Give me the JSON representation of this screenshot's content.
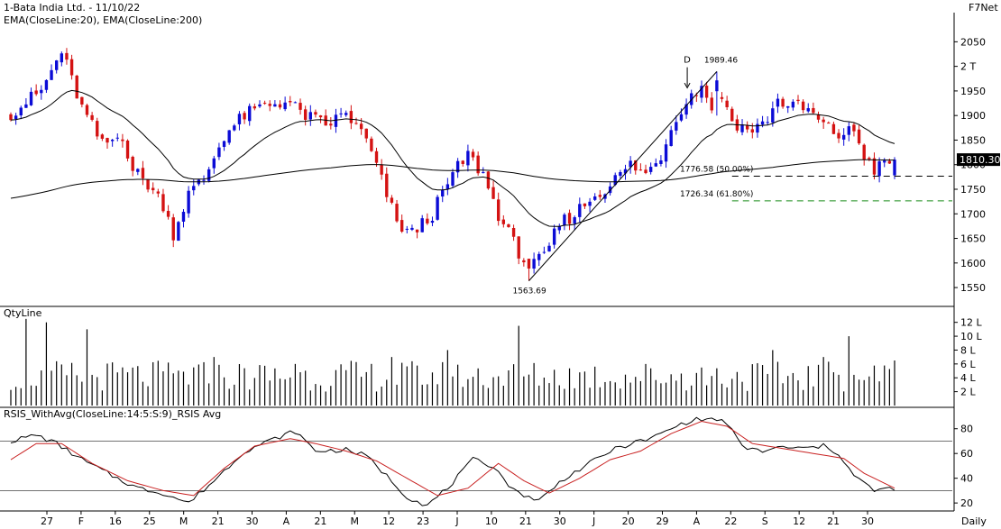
{
  "header": {
    "title": "1-Bata India Ltd. - 11/10/22",
    "indicators": "EMA(CloseLine:20), EMA(CloseLine:200)",
    "brand": "F7Net"
  },
  "panels": {
    "volume_label": "QtyLine",
    "rsi_label": "RSIS_WithAvg(CloseLine:14:5:S:9)_RSIS Avg",
    "timeframe": "Daily"
  },
  "colors": {
    "up": "#0b0bd6",
    "down": "#d41212",
    "ema_fast": "#000000",
    "ema_slow": "#000000",
    "volume": "#000000",
    "rsi": "#000000",
    "rsi_avg": "#c82020",
    "fib_50": "#000000",
    "fib_618": "#1a8c1a",
    "price_badge": "#000000",
    "grid": "#000000"
  },
  "annotations": {
    "high_label": "1989.46",
    "low_label": "1563.69",
    "d_marker": "D",
    "fib_50_label": "1776.58 (50.00%)",
    "fib_618_label": "1726.34 (61.80%)",
    "last_price": "1810.30"
  },
  "chart_data": [
    {
      "type": "candlestick",
      "title": "1-Bata India Ltd. - 11/10/22",
      "ylim": [
        1530,
        2080
      ],
      "y_ticks": [
        1550,
        1600,
        1650,
        1700,
        1750,
        1800,
        1850,
        1900,
        1950,
        2050
      ],
      "y_tick_labels": [
        "1550",
        "1600",
        "1650",
        "1700",
        "1750",
        "1800",
        "1850",
        "1900",
        "1950",
        "2050"
      ],
      "extra_tick": {
        "label": "2 T",
        "value": 2000
      },
      "x_tick_labels": [
        "27",
        "F",
        "16",
        "25",
        "M",
        "21",
        "30",
        "A",
        "21",
        "M",
        "12",
        "23",
        "J",
        "10",
        "21",
        "30",
        "J",
        "20",
        "29",
        "A",
        "22",
        "S",
        "12",
        "21",
        "30"
      ],
      "candles_count": 175,
      "anchors": [
        [
          0,
          1905
        ],
        [
          6,
          1950
        ],
        [
          10,
          2030
        ],
        [
          14,
          1915
        ],
        [
          18,
          1840
        ],
        [
          22,
          1860
        ],
        [
          24,
          1790
        ],
        [
          27,
          1760
        ],
        [
          30,
          1720
        ],
        [
          32,
          1660
        ],
        [
          35,
          1740
        ],
        [
          38,
          1770
        ],
        [
          42,
          1860
        ],
        [
          46,
          1900
        ],
        [
          50,
          1920
        ],
        [
          54,
          1930
        ],
        [
          58,
          1900
        ],
        [
          62,
          1880
        ],
        [
          66,
          1905
        ],
        [
          70,
          1850
        ],
        [
          74,
          1740
        ],
        [
          76,
          1680
        ],
        [
          79,
          1660
        ],
        [
          83,
          1700
        ],
        [
          87,
          1780
        ],
        [
          90,
          1820
        ],
        [
          93,
          1780
        ],
        [
          96,
          1700
        ],
        [
          99,
          1640
        ],
        [
          102,
          1590
        ],
        [
          105,
          1610
        ],
        [
          108,
          1680
        ],
        [
          111,
          1700
        ],
        [
          114,
          1730
        ],
        [
          118,
          1760
        ],
        [
          122,
          1800
        ],
        [
          125,
          1780
        ],
        [
          128,
          1820
        ],
        [
          131,
          1900
        ],
        [
          133,
          1930
        ],
        [
          136,
          1960
        ],
        [
          138,
          1920
        ],
        [
          140,
          1940
        ],
        [
          142,
          1890
        ],
        [
          145,
          1870
        ],
        [
          148,
          1880
        ],
        [
          151,
          1930
        ],
        [
          154,
          1920
        ],
        [
          157,
          1910
        ],
        [
          160,
          1880
        ],
        [
          163,
          1860
        ],
        [
          166,
          1870
        ],
        [
          168,
          1820
        ],
        [
          170,
          1790
        ],
        [
          172,
          1800
        ],
        [
          174,
          1810
        ]
      ],
      "fib_levels": [
        {
          "value": 1776.58,
          "label": "1776.58 (50.00%)"
        },
        {
          "value": 1726.34,
          "label": "1726.34 (61.80%)"
        }
      ],
      "high": 1989.46,
      "low": 1563.69,
      "last": 1810.3,
      "series": [
        {
          "name": "EMA(CloseLine:20)",
          "kind": "ema",
          "period": 20
        },
        {
          "name": "EMA(CloseLine:200)",
          "kind": "ema",
          "period": 200
        }
      ]
    },
    {
      "type": "bar",
      "title": "QtyLine",
      "ylim": [
        0,
        13
      ],
      "y_ticks": [
        2,
        4,
        6,
        8,
        10,
        12
      ],
      "y_tick_labels": [
        "2 L",
        "4 L",
        "6 L",
        "8 L",
        "10 L",
        "12 L"
      ],
      "spikes": [
        [
          3,
          12.5
        ],
        [
          7,
          12
        ],
        [
          15,
          11
        ],
        [
          40,
          7
        ],
        [
          56,
          6
        ],
        [
          75,
          7
        ],
        [
          86,
          8
        ],
        [
          100,
          11.5
        ],
        [
          150,
          8
        ],
        [
          160,
          7
        ],
        [
          165,
          10
        ],
        [
          174,
          6.5
        ]
      ]
    },
    {
      "type": "line",
      "title": "RSIS_WithAvg(CloseLine:14:5:S:9)_RSIS Avg",
      "ylim": [
        15,
        90
      ],
      "y_ticks": [
        20,
        40,
        60,
        80
      ],
      "y_tick_labels": [
        "20",
        "40",
        "60",
        "80"
      ],
      "reference_lines": [
        70,
        30
      ],
      "series": [
        {
          "name": "RSIS",
          "anchors": [
            [
              0,
              70
            ],
            [
              5,
              75
            ],
            [
              9,
              68
            ],
            [
              14,
              55
            ],
            [
              20,
              42
            ],
            [
              25,
              32
            ],
            [
              30,
              28
            ],
            [
              35,
              20
            ],
            [
              40,
              38
            ],
            [
              46,
              62
            ],
            [
              52,
              72
            ],
            [
              56,
              78
            ],
            [
              60,
              62
            ],
            [
              66,
              63
            ],
            [
              70,
              58
            ],
            [
              74,
              42
            ],
            [
              78,
              25
            ],
            [
              82,
              18
            ],
            [
              86,
              32
            ],
            [
              91,
              55
            ],
            [
              95,
              50
            ],
            [
              99,
              30
            ],
            [
              104,
              22
            ],
            [
              109,
              40
            ],
            [
              114,
              52
            ],
            [
              118,
              62
            ],
            [
              122,
              68
            ],
            [
              126,
              72
            ],
            [
              130,
              80
            ],
            [
              134,
              87
            ],
            [
              138,
              88
            ],
            [
              141,
              85
            ],
            [
              144,
              65
            ],
            [
              148,
              62
            ],
            [
              152,
              65
            ],
            [
              156,
              64
            ],
            [
              160,
              66
            ],
            [
              163,
              60
            ],
            [
              166,
              42
            ],
            [
              170,
              30
            ],
            [
              174,
              32
            ]
          ]
        },
        {
          "name": "RSIS Avg",
          "anchors": [
            [
              0,
              55
            ],
            [
              5,
              68
            ],
            [
              10,
              68
            ],
            [
              16,
              52
            ],
            [
              23,
              38
            ],
            [
              30,
              30
            ],
            [
              36,
              26
            ],
            [
              42,
              48
            ],
            [
              48,
              66
            ],
            [
              55,
              72
            ],
            [
              60,
              68
            ],
            [
              66,
              62
            ],
            [
              72,
              54
            ],
            [
              78,
              40
            ],
            [
              84,
              26
            ],
            [
              90,
              32
            ],
            [
              96,
              52
            ],
            [
              101,
              38
            ],
            [
              106,
              28
            ],
            [
              112,
              40
            ],
            [
              118,
              55
            ],
            [
              124,
              62
            ],
            [
              130,
              76
            ],
            [
              136,
              86
            ],
            [
              141,
              82
            ],
            [
              146,
              68
            ],
            [
              152,
              64
            ],
            [
              158,
              60
            ],
            [
              164,
              56
            ],
            [
              168,
              44
            ],
            [
              174,
              32
            ]
          ]
        }
      ]
    }
  ]
}
